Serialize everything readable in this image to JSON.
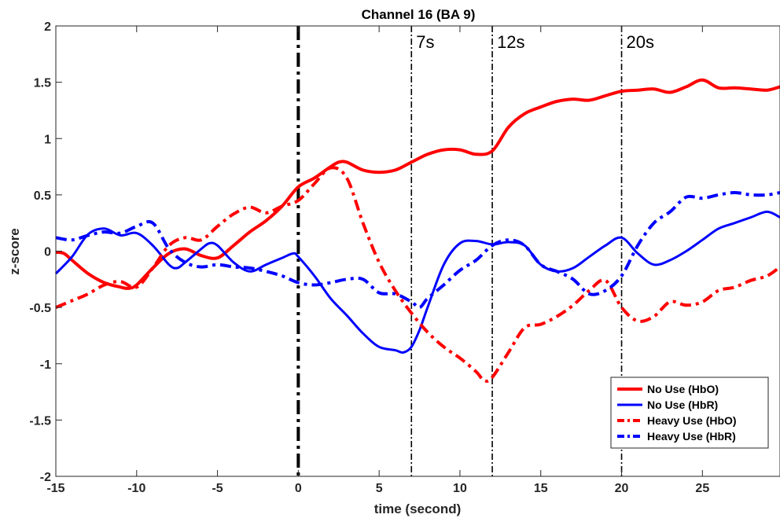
{
  "chart_data": {
    "type": "line",
    "title": "Channel 16 (BA 9)",
    "xlabel": "time (second)",
    "ylabel": "z-score",
    "xlim": [
      -15,
      29.8
    ],
    "ylim": [
      -2,
      2
    ],
    "grid": false,
    "legend_position": "bottom-right",
    "x_ticks": [
      {
        "value": -15,
        "label": "-15"
      },
      {
        "value": -10,
        "label": "-10"
      },
      {
        "value": -5,
        "label": "-5"
      },
      {
        "value": 0,
        "label": "0"
      },
      {
        "value": 5,
        "label": "5"
      },
      {
        "value": 10,
        "label": "10"
      },
      {
        "value": 15,
        "label": "15"
      },
      {
        "value": 20,
        "label": "20"
      },
      {
        "value": 25,
        "label": "25"
      }
    ],
    "y_ticks": [
      {
        "value": 2,
        "label": "2"
      },
      {
        "value": 1.5,
        "label": "1.5"
      },
      {
        "value": 1,
        "label": "1"
      },
      {
        "value": 0.5,
        "label": "0.5"
      },
      {
        "value": 0,
        "label": "0"
      },
      {
        "value": -0.5,
        "label": "-0.5"
      },
      {
        "value": -1,
        "label": "-1"
      },
      {
        "value": -1.5,
        "label": "-1.5"
      },
      {
        "value": -2,
        "label": "-2"
      }
    ],
    "vertical_markers": [
      {
        "x": 0,
        "label": "",
        "style": "dashdot-thick"
      },
      {
        "x": 7,
        "label": "7s",
        "style": "dashdot-thin"
      },
      {
        "x": 12,
        "label": "12s",
        "style": "dashdot-thin"
      },
      {
        "x": 20,
        "label": "20s",
        "style": "dashdot-thin"
      }
    ],
    "series": [
      {
        "name": "No Use (HbO)",
        "color": "#ff0000",
        "dash": "solid",
        "width": 4,
        "x": [
          -15,
          -14.5,
          -14,
          -13,
          -12,
          -11,
          -10.5,
          -10,
          -9,
          -8,
          -7,
          -6,
          -5,
          -4,
          -3,
          -2,
          -1,
          0,
          1,
          2,
          2.5,
          3,
          4,
          5,
          6,
          7,
          8,
          9,
          10,
          11,
          12,
          13,
          14,
          15,
          16,
          17,
          18,
          19,
          20,
          21,
          22,
          23,
          24,
          25,
          26,
          27,
          28,
          29,
          29.8
        ],
        "y": [
          -0.01,
          -0.02,
          -0.08,
          -0.2,
          -0.28,
          -0.32,
          -0.33,
          -0.3,
          -0.15,
          -0.02,
          0.02,
          -0.04,
          -0.06,
          0.05,
          0.17,
          0.27,
          0.4,
          0.57,
          0.65,
          0.75,
          0.79,
          0.79,
          0.72,
          0.7,
          0.72,
          0.79,
          0.86,
          0.9,
          0.9,
          0.86,
          0.89,
          1.1,
          1.22,
          1.28,
          1.33,
          1.35,
          1.34,
          1.38,
          1.42,
          1.43,
          1.44,
          1.41,
          1.46,
          1.52,
          1.45,
          1.45,
          1.44,
          1.43,
          1.46
        ]
      },
      {
        "name": "No Use (HbR)",
        "color": "#0000ff",
        "dash": "solid",
        "width": 3,
        "x": [
          -15,
          -14,
          -13,
          -12,
          -11,
          -10,
          -9,
          -8,
          -7.5,
          -7,
          -6,
          -5.5,
          -5,
          -4,
          -3,
          -2,
          -1,
          -0.3,
          0,
          1,
          2,
          3,
          4,
          5,
          6,
          6.5,
          7,
          7.5,
          8,
          9,
          10,
          11,
          12,
          13,
          14,
          15,
          16,
          17,
          18,
          19,
          20,
          21,
          22,
          23,
          24,
          25,
          26,
          27,
          28,
          29,
          29.8
        ],
        "y": [
          -0.2,
          -0.05,
          0.15,
          0.2,
          0.14,
          0.16,
          0.05,
          -0.12,
          -0.15,
          -0.1,
          0.02,
          0.07,
          0.05,
          -0.1,
          -0.18,
          -0.12,
          -0.06,
          -0.02,
          -0.05,
          -0.22,
          -0.42,
          -0.57,
          -0.73,
          -0.85,
          -0.88,
          -0.9,
          -0.85,
          -0.7,
          -0.5,
          -0.12,
          0.07,
          0.09,
          0.06,
          0.08,
          0.05,
          -0.12,
          -0.18,
          -0.15,
          -0.05,
          0.05,
          0.12,
          -0.02,
          -0.12,
          -0.08,
          0.0,
          0.1,
          0.2,
          0.25,
          0.3,
          0.35,
          0.3
        ]
      },
      {
        "name": "Heavy Use (HbO)",
        "color": "#ff0000",
        "dash": "dashdot",
        "width": 4,
        "x": [
          -15,
          -14,
          -13,
          -12,
          -11,
          -10,
          -9,
          -8,
          -7,
          -6,
          -5,
          -4,
          -3,
          -2,
          -1,
          0,
          1,
          2,
          3,
          4,
          5,
          6,
          7,
          8,
          9,
          10,
          11,
          11.5,
          12,
          13,
          14,
          15,
          16,
          17,
          18,
          19,
          20,
          21,
          22,
          23,
          24,
          25,
          26,
          27,
          28,
          29,
          29.8
        ],
        "y": [
          -0.5,
          -0.44,
          -0.38,
          -0.3,
          -0.27,
          -0.32,
          -0.15,
          0.05,
          0.12,
          0.1,
          0.22,
          0.33,
          0.39,
          0.34,
          0.4,
          0.45,
          0.6,
          0.74,
          0.65,
          0.25,
          -0.1,
          -0.35,
          -0.55,
          -0.72,
          -0.85,
          -0.95,
          -1.07,
          -1.15,
          -1.12,
          -0.9,
          -0.68,
          -0.65,
          -0.58,
          -0.48,
          -0.35,
          -0.26,
          -0.5,
          -0.62,
          -0.58,
          -0.45,
          -0.48,
          -0.45,
          -0.35,
          -0.32,
          -0.26,
          -0.22,
          -0.14
        ]
      },
      {
        "name": "Heavy Use (HbR)",
        "color": "#0000ff",
        "dash": "dashdot",
        "width": 4,
        "x": [
          -15,
          -14,
          -13,
          -12,
          -11,
          -10,
          -9,
          -8,
          -7,
          -6,
          -5,
          -4,
          -3,
          -2,
          -1,
          0,
          1,
          2,
          3,
          4,
          5,
          6,
          7,
          7.5,
          8,
          9,
          10,
          11,
          12,
          13,
          14,
          15,
          16,
          17,
          18,
          19,
          20,
          21,
          22,
          23,
          24,
          25,
          26,
          27,
          28,
          29,
          29.8
        ],
        "y": [
          0.12,
          0.1,
          0.14,
          0.17,
          0.16,
          0.22,
          0.25,
          0.02,
          -0.1,
          -0.14,
          -0.12,
          -0.14,
          -0.15,
          -0.18,
          -0.22,
          -0.28,
          -0.3,
          -0.28,
          -0.25,
          -0.25,
          -0.37,
          -0.38,
          -0.45,
          -0.5,
          -0.42,
          -0.3,
          -0.17,
          -0.08,
          0.05,
          0.1,
          0.05,
          -0.12,
          -0.18,
          -0.25,
          -0.38,
          -0.35,
          -0.22,
          0.05,
          0.25,
          0.35,
          0.48,
          0.47,
          0.5,
          0.52,
          0.5,
          0.5,
          0.52
        ]
      }
    ]
  }
}
